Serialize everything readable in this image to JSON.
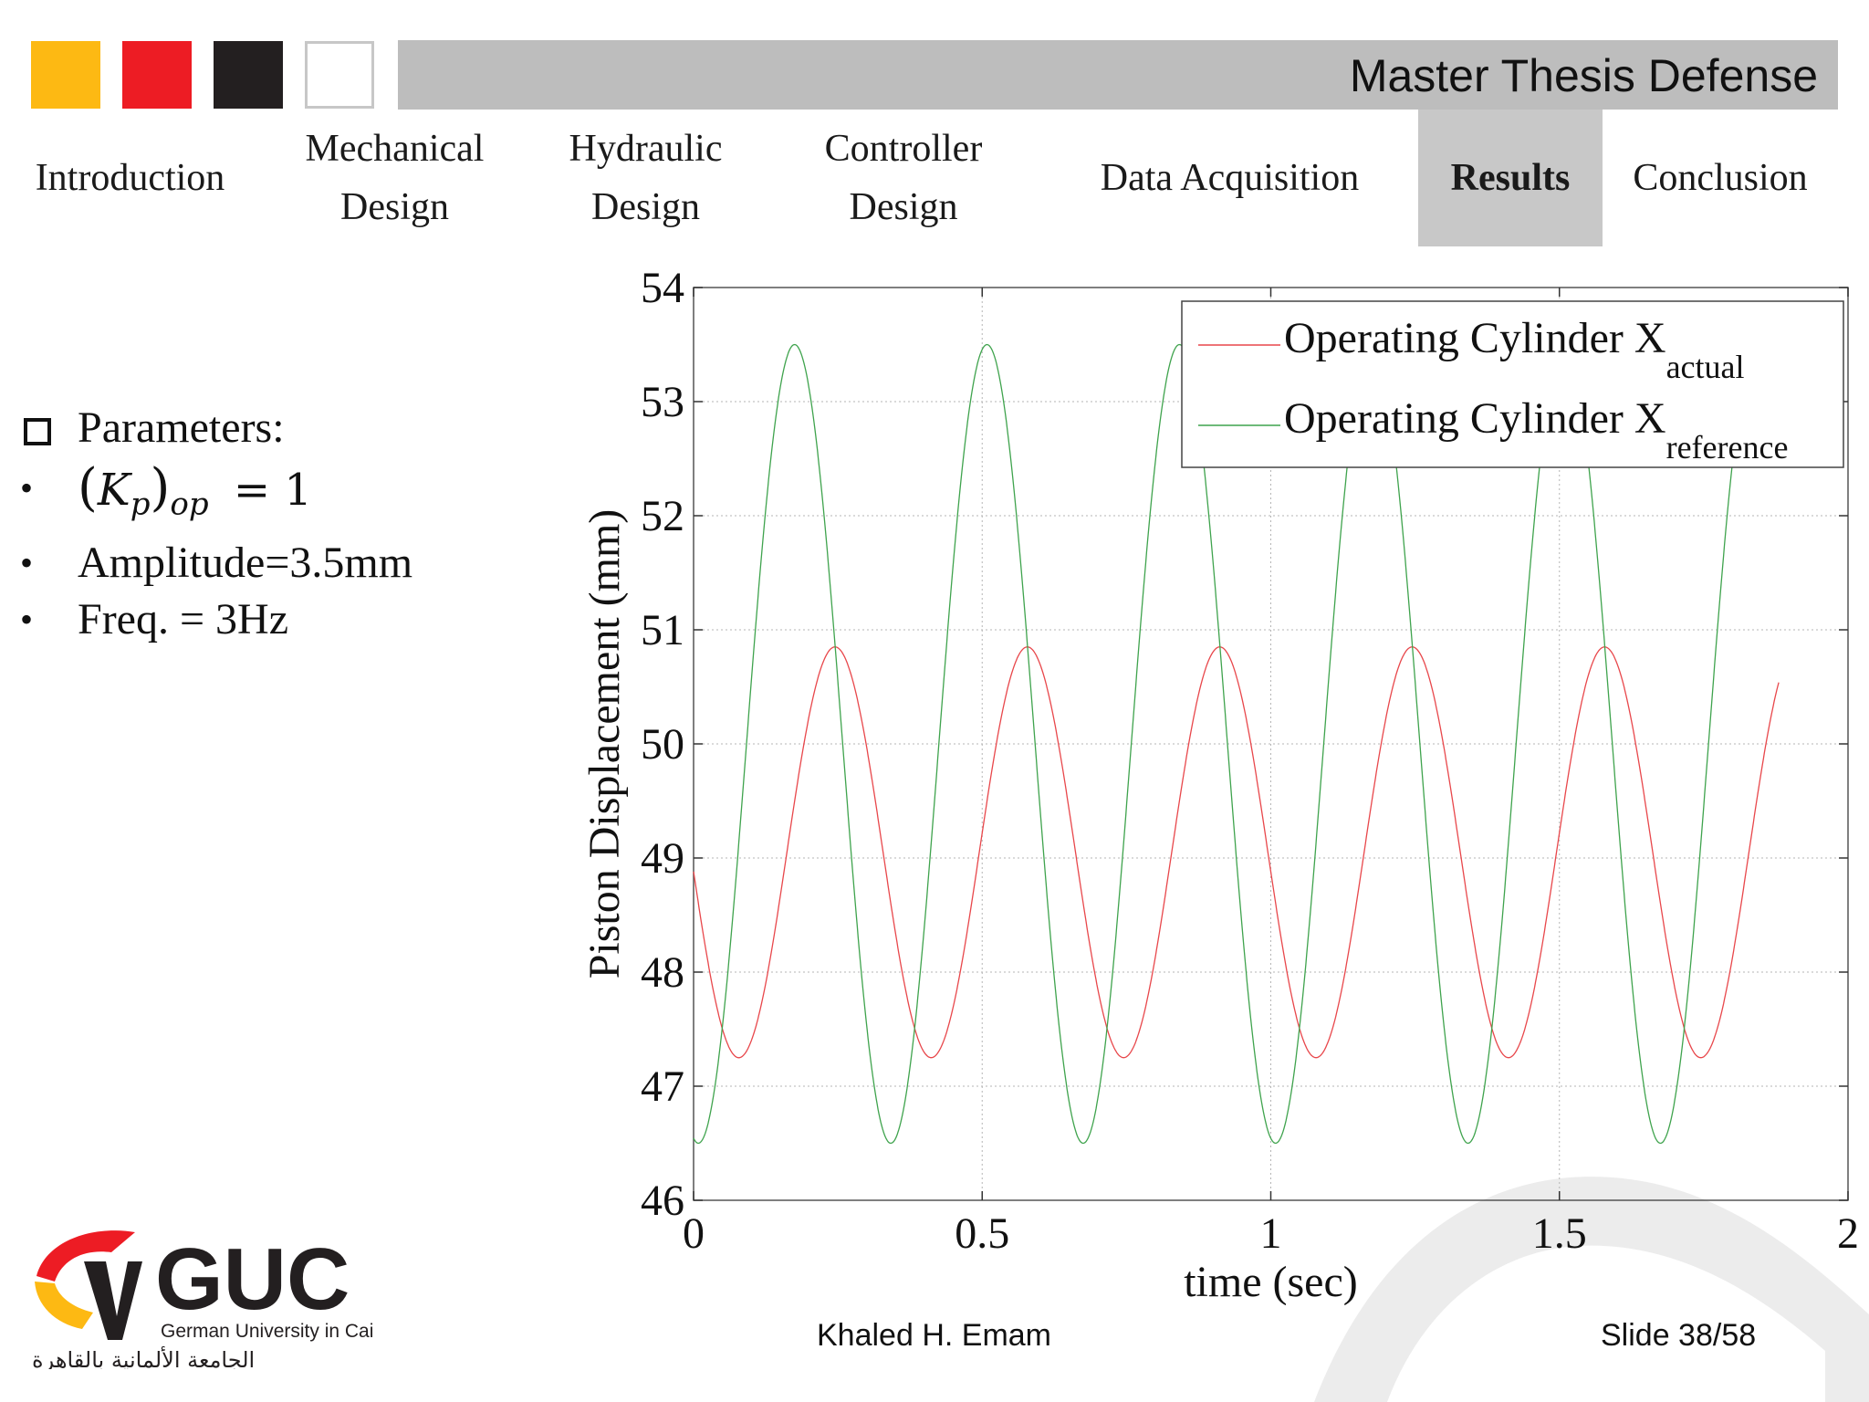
{
  "header": {
    "title": "Master Thesis Defense",
    "color_blocks": [
      "#fdb913",
      "#ed1c24",
      "#231f20",
      "#ffffff"
    ]
  },
  "nav": {
    "items": [
      {
        "label": "Introduction",
        "active": false
      },
      {
        "label": "Mechanical Design",
        "active": false
      },
      {
        "label": "Hydraulic Design",
        "active": false
      },
      {
        "label": "Controller Design",
        "active": false
      },
      {
        "label": "Data Acquisition",
        "active": false
      },
      {
        "label": "Results",
        "active": true
      },
      {
        "label": "Conclusion",
        "active": false
      }
    ]
  },
  "params": {
    "heading": "Parameters:",
    "kp_symbol": "K",
    "kp_sub": "p",
    "kp_outer_sub": "op",
    "kp_value": "= 1",
    "amplitude": "Amplitude=3.5mm",
    "freq": "Freq. = 3Hz"
  },
  "chart_data": {
    "type": "line",
    "xlabel": "time (sec)",
    "ylabel": "Piston Displacement (mm)",
    "xlim": [
      0,
      2
    ],
    "ylim": [
      46,
      54
    ],
    "xticks": [
      "0",
      "0.5",
      "1",
      "1.5",
      "2"
    ],
    "yticks": [
      "46",
      "47",
      "48",
      "49",
      "50",
      "51",
      "52",
      "53",
      "54"
    ],
    "grid": true,
    "legend_position": "top-right",
    "x_end": 1.88,
    "series": [
      {
        "name_main": "Operating Cylinder  X",
        "name_sub": "actual",
        "color": "#e8474b",
        "mean": 49.05,
        "amplitude": 1.8,
        "frequency_hz": 3,
        "phase_peak_s": 0.245
      },
      {
        "name_main": "Operating Cylinder  X",
        "name_sub": "reference",
        "color": "#3fa34d",
        "mean": 50.0,
        "amplitude": 3.5,
        "frequency_hz": 3,
        "phase_peak_s": 0.175
      }
    ]
  },
  "footer": {
    "author": "Khaled H. Emam",
    "slide": "Slide 38/58"
  },
  "logo": {
    "name": "GUC",
    "tagline": "German University in Cairo",
    "arabic": "الجامعة الألمانية بالقاهرة"
  }
}
